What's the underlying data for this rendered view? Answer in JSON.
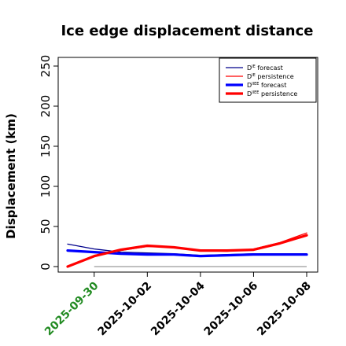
{
  "chart_data": {
    "type": "line",
    "title": "Ice edge displacement distance",
    "xlabel": "",
    "ylabel": "Displacement (km)",
    "ylim": [
      0,
      260
    ],
    "yticks": [
      "0",
      "50",
      "100",
      "150",
      "200",
      "250"
    ],
    "x": [
      "2025-09-29",
      "2025-09-30",
      "2025-10-01",
      "2025-10-02",
      "2025-10-03",
      "2025-10-04",
      "2025-10-05",
      "2025-10-06",
      "2025-10-07",
      "2025-10-08"
    ],
    "xticks": [
      {
        "date": "2025-09-30",
        "label": "2025-09-30",
        "color": "#228B22"
      },
      {
        "date": "2025-10-02",
        "label": "2025-10-02",
        "color": "#000000"
      },
      {
        "date": "2025-10-04",
        "label": "2025-10-04",
        "color": "#000000"
      },
      {
        "date": "2025-10-06",
        "label": "2025-10-06",
        "color": "#000000"
      },
      {
        "date": "2025-10-08",
        "label": "2025-10-08",
        "color": "#000000"
      }
    ],
    "grid": false,
    "legend_position": "top-right",
    "series": [
      {
        "name": "DIE forecast",
        "base": "D",
        "sup": "IE",
        "label_rest": " forecast",
        "color": "#00008B",
        "style": "thin",
        "values": [
          28,
          22,
          18,
          17,
          16,
          14,
          15,
          16,
          16,
          16
        ]
      },
      {
        "name": "DIE persistence",
        "base": "D",
        "sup": "IE",
        "label_rest": " persistence",
        "color": "#FF0000",
        "style": "thin",
        "values": [
          0,
          14,
          20,
          25,
          24,
          20,
          19,
          22,
          30,
          42
        ]
      },
      {
        "name": "DIIEE forecast",
        "base": "D",
        "sup": "IIEE",
        "label_rest": " forecast",
        "color": "#0000FF",
        "style": "thick",
        "values": [
          20,
          18,
          16,
          15,
          15,
          13,
          14,
          15,
          15,
          15
        ]
      },
      {
        "name": "DIIEE persistence",
        "base": "D",
        "sup": "IIEE",
        "label_rest": " persistence",
        "color": "#FF0000",
        "style": "thick",
        "values": [
          0,
          13,
          21,
          26,
          24,
          20,
          20,
          21,
          29,
          39
        ]
      }
    ],
    "reference_line": {
      "value": 0,
      "color": "#808080"
    }
  }
}
